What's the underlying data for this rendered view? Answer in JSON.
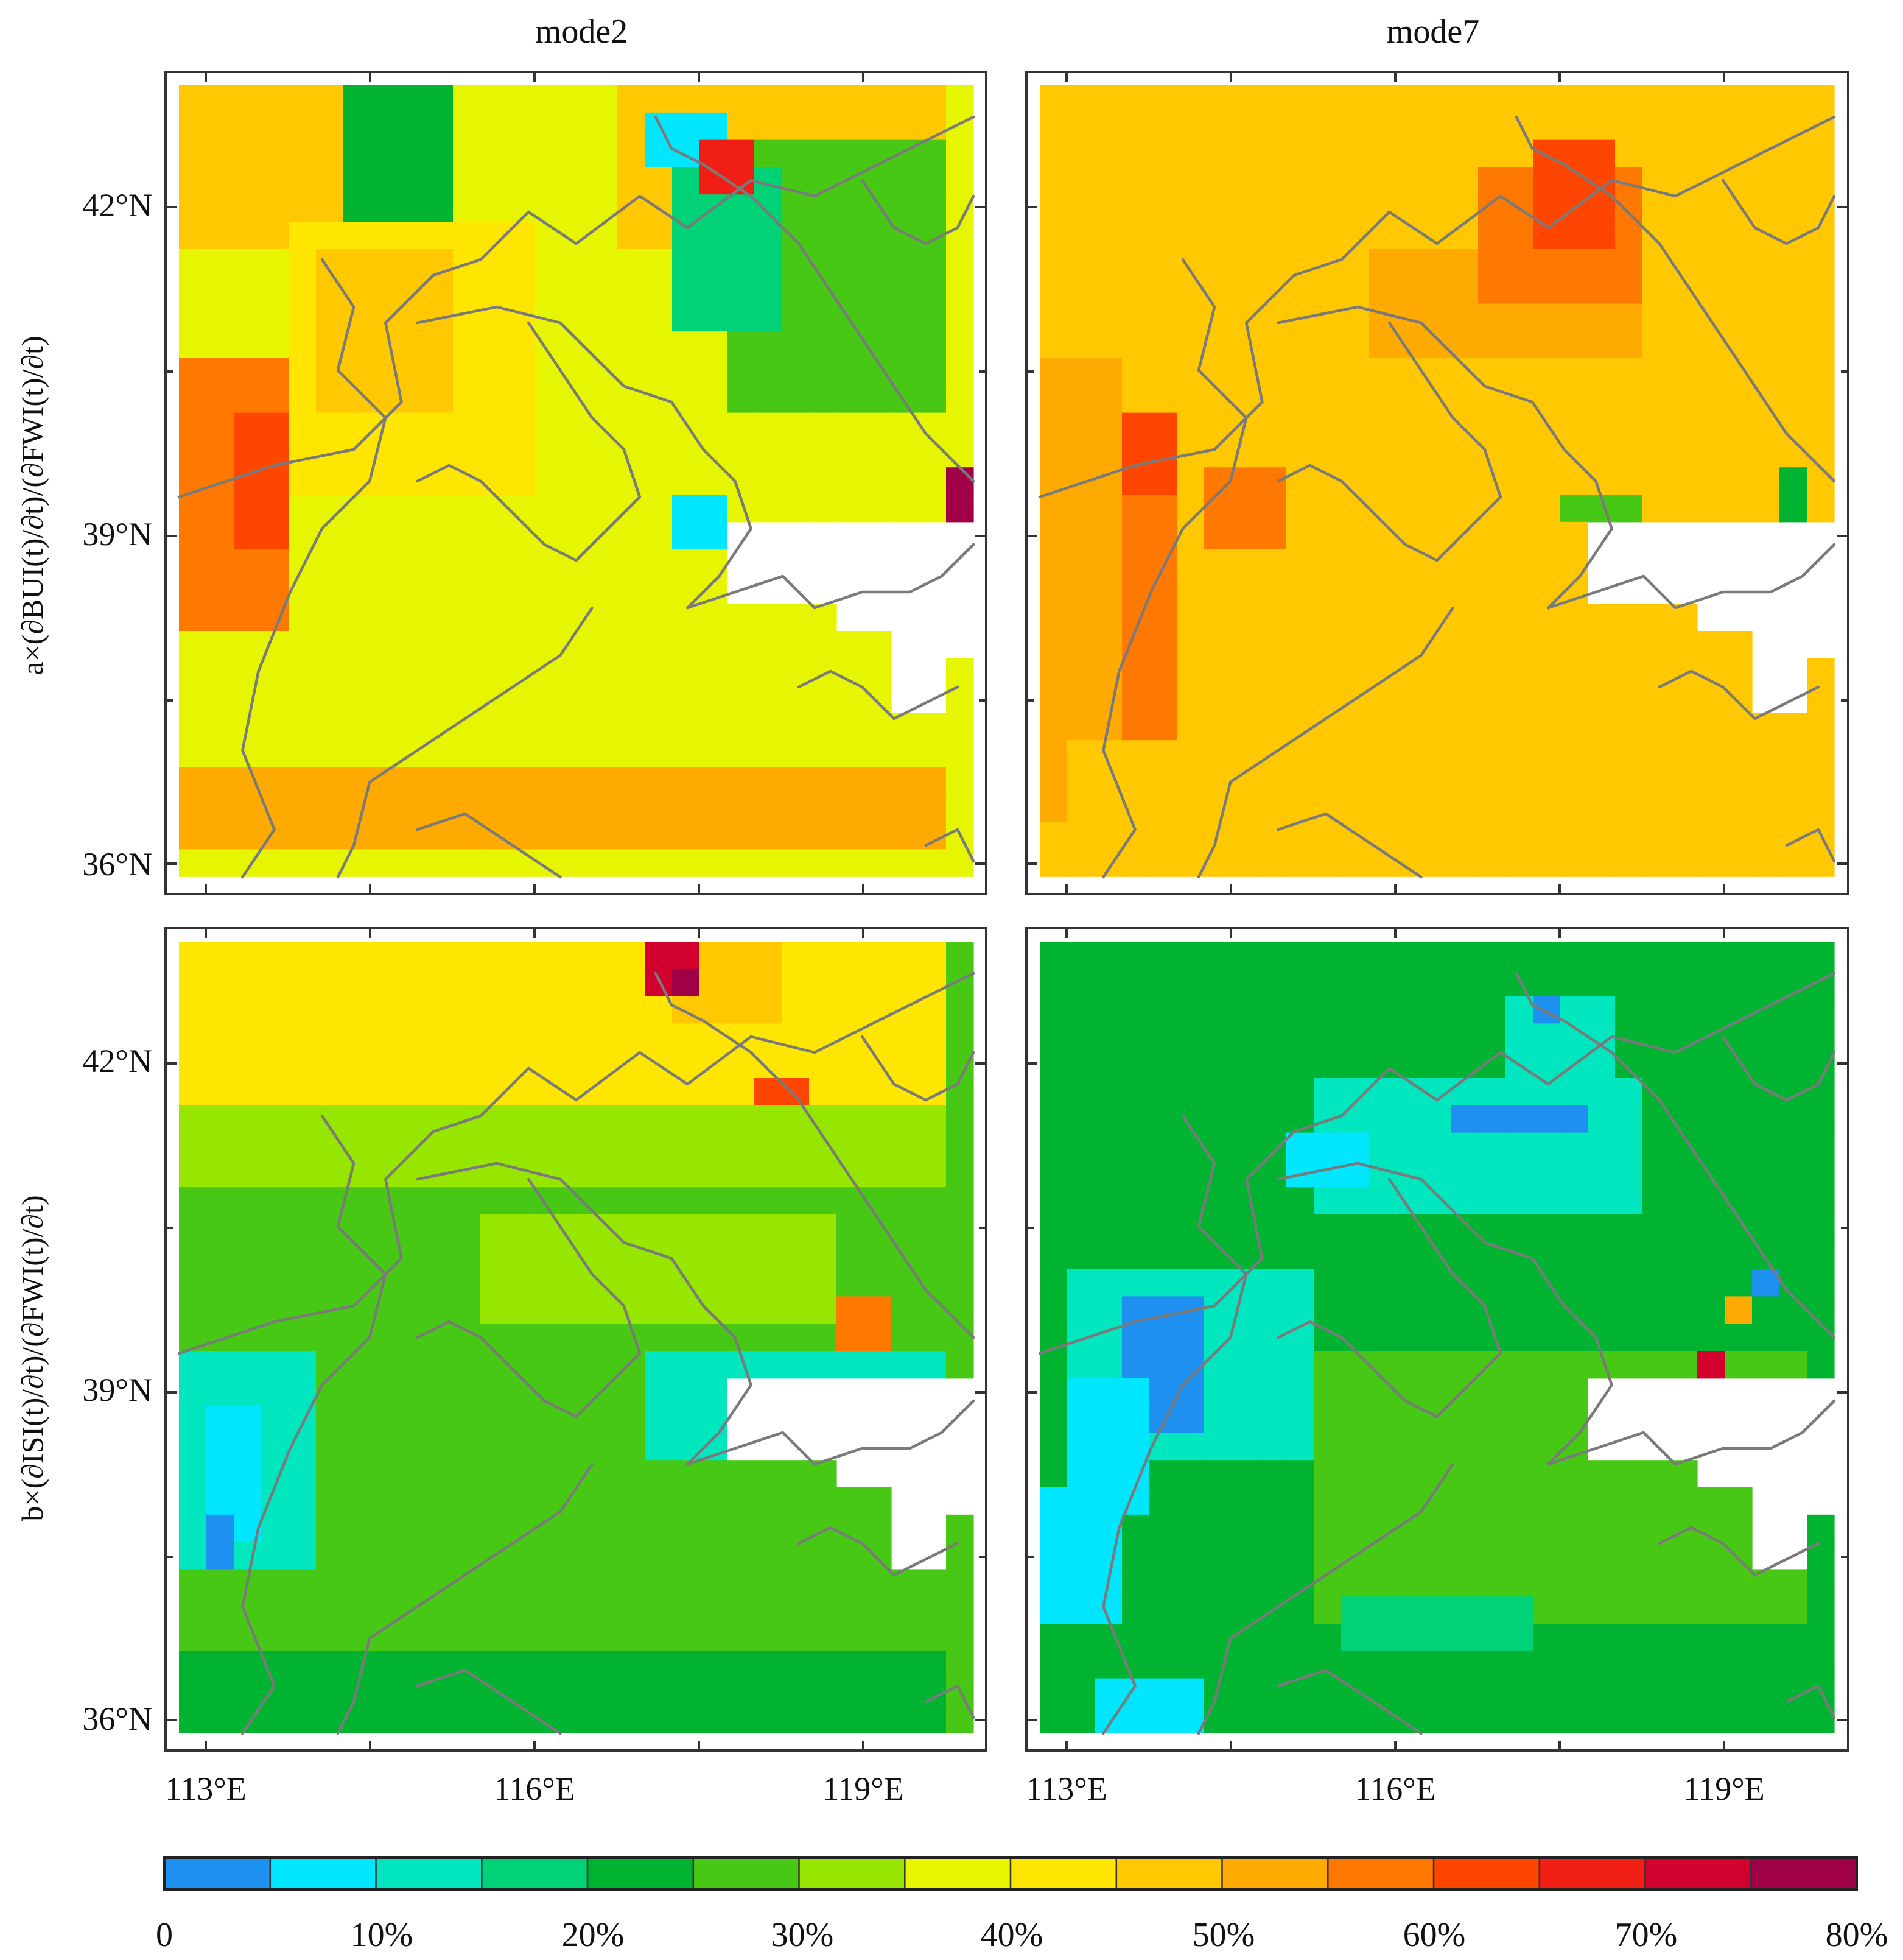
{
  "figure": {
    "columns": [
      {
        "title": "mode2"
      },
      {
        "title": "mode7"
      }
    ],
    "rows": [
      {
        "label": "a×(∂BUI(t)/∂t)/(∂FWI(t)/∂t)"
      },
      {
        "label": "b×(∂ISI(t)/∂t)/(∂FWI(t)/∂t)"
      }
    ],
    "lat_ticks": [
      "42°N",
      "39°N",
      "36°N"
    ],
    "lon_ticks": [
      "113°E",
      "116°E",
      "119°E"
    ],
    "colorbar": {
      "labels": [
        "0",
        "10%",
        "20%",
        "30%",
        "40%",
        "50%",
        "60%",
        "70%",
        "80%"
      ],
      "colors": [
        "#1e90f0",
        "#00e6ff",
        "#00e6be",
        "#00d278",
        "#00b432",
        "#46c814",
        "#96e600",
        "#e6f500",
        "#ffe600",
        "#ffc800",
        "#ffaa00",
        "#ff7800",
        "#ff4600",
        "#f01e14",
        "#d2002d",
        "#a00046"
      ]
    }
  },
  "map_data": {
    "grid": {
      "rows": 29,
      "cols": 29,
      "nodata": -1
    },
    "panels": [
      {
        "name": "mode2-a",
        "base": 7,
        "mask": true,
        "patches": [
          [
            0,
            0,
            6,
            28,
            9
          ],
          [
            0,
            6,
            6,
            10,
            4
          ],
          [
            0,
            10,
            6,
            16,
            7
          ],
          [
            5,
            4,
            15,
            13,
            8
          ],
          [
            6,
            5,
            12,
            10,
            9
          ],
          [
            10,
            0,
            20,
            4,
            11
          ],
          [
            12,
            2,
            17,
            4,
            12
          ],
          [
            2,
            20,
            12,
            28,
            5
          ],
          [
            3,
            18,
            9,
            22,
            3
          ],
          [
            1,
            17,
            3,
            20,
            1
          ],
          [
            2,
            19,
            4,
            21,
            13
          ],
          [
            15,
            18,
            17,
            20,
            1
          ],
          [
            16,
            24,
            19,
            27,
            11
          ],
          [
            25,
            0,
            28,
            28,
            10
          ],
          [
            18,
            26,
            20,
            28,
            9
          ],
          [
            14,
            28,
            16,
            29,
            15
          ]
        ]
      },
      {
        "name": "mode7-a",
        "base": 9,
        "mask": true,
        "patches": [
          [
            6,
            12,
            10,
            22,
            10
          ],
          [
            3,
            16,
            8,
            22,
            11
          ],
          [
            2,
            18,
            6,
            21,
            12
          ],
          [
            12,
            2,
            18,
            5,
            12
          ],
          [
            14,
            6,
            17,
            9,
            11
          ],
          [
            10,
            0,
            27,
            3,
            10
          ],
          [
            15,
            3,
            24,
            5,
            11
          ],
          [
            24,
            1,
            28,
            28,
            9
          ],
          [
            15,
            19,
            16,
            22,
            5
          ],
          [
            17,
            24,
            19,
            27,
            11
          ],
          [
            14,
            27,
            16,
            28,
            4
          ]
        ]
      },
      {
        "name": "mode2-b",
        "base": 5,
        "mask": true,
        "patches": [
          [
            0,
            0,
            6,
            28,
            8
          ],
          [
            0,
            18,
            3,
            22,
            9
          ],
          [
            0,
            17,
            2,
            19,
            14
          ],
          [
            1,
            18,
            2,
            19,
            15
          ],
          [
            5,
            21,
            8,
            23,
            12
          ],
          [
            6,
            0,
            10,
            28,
            6
          ],
          [
            9,
            0,
            14,
            28,
            5
          ],
          [
            10,
            11,
            14,
            24,
            6
          ],
          [
            15,
            0,
            23,
            5,
            2
          ],
          [
            17,
            1,
            22,
            3,
            1
          ],
          [
            21,
            1,
            23,
            2,
            0
          ],
          [
            15,
            17,
            19,
            28,
            2
          ],
          [
            13,
            24,
            15,
            26,
            11
          ],
          [
            26,
            0,
            29,
            28,
            4
          ]
        ]
      },
      {
        "name": "mode7-b",
        "base": 4,
        "mask": true,
        "patches": [
          [
            0,
            0,
            8,
            28,
            4
          ],
          [
            2,
            17,
            5,
            21,
            2
          ],
          [
            2,
            18,
            3,
            19,
            0
          ],
          [
            5,
            10,
            10,
            22,
            2
          ],
          [
            6,
            15,
            7,
            20,
            0
          ],
          [
            7,
            9,
            9,
            12,
            1
          ],
          [
            12,
            1,
            19,
            10,
            2
          ],
          [
            13,
            3,
            18,
            6,
            0
          ],
          [
            16,
            1,
            21,
            4,
            1
          ],
          [
            20,
            0,
            25,
            3,
            1
          ],
          [
            15,
            10,
            25,
            28,
            5
          ],
          [
            24,
            11,
            26,
            18,
            3
          ],
          [
            27,
            2,
            29,
            6,
            1
          ],
          [
            15,
            24,
            16,
            25,
            14
          ],
          [
            12,
            26,
            13,
            27,
            0
          ],
          [
            13,
            25,
            14,
            26,
            10
          ],
          [
            18,
            23,
            19,
            24,
            0
          ]
        ]
      }
    ]
  }
}
